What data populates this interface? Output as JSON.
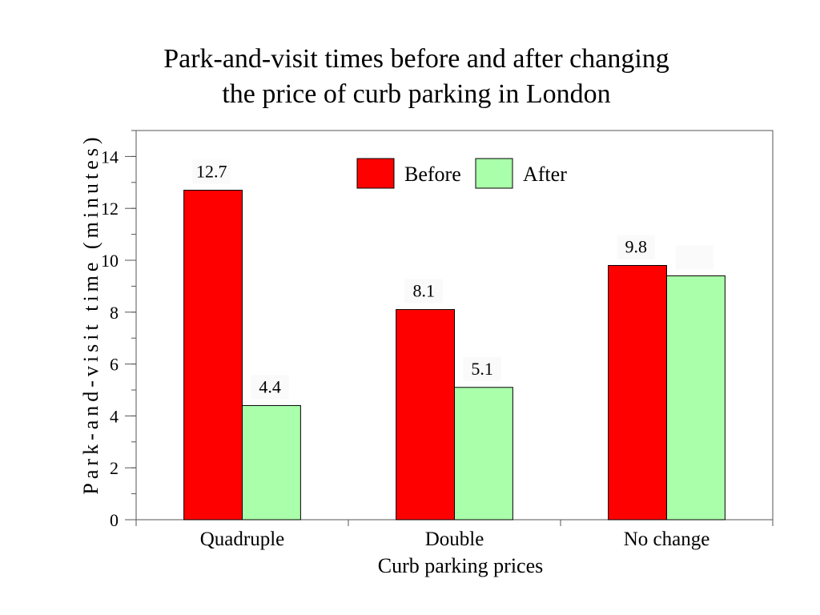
{
  "chart_data": {
    "type": "bar",
    "title_lines": [
      "Park-and-visit times before and after changing",
      "the price of curb parking in London"
    ],
    "xlabel": "Curb parking prices",
    "ylabel": "Park-and-visit time (minutes)",
    "categories": [
      "Quadruple",
      "Double",
      "No change"
    ],
    "series": [
      {
        "name": "Before",
        "values": [
          12.7,
          8.1,
          9.8
        ],
        "labels": [
          "12.7",
          "8.1",
          "9.8"
        ],
        "color": "#ff0000"
      },
      {
        "name": "After",
        "values": [
          4.4,
          5.1,
          9.4
        ],
        "labels": [
          "4.4",
          "5.1",
          ""
        ],
        "color": "#aaffaa"
      }
    ],
    "ylim": [
      0,
      15
    ],
    "yticks": [
      0,
      2,
      4,
      6,
      8,
      10,
      12,
      14
    ],
    "ytick_labels": [
      "0",
      "2",
      "4",
      "6",
      "8",
      "10",
      "12",
      "14"
    ],
    "grid": false,
    "legend_position": "top-center"
  }
}
